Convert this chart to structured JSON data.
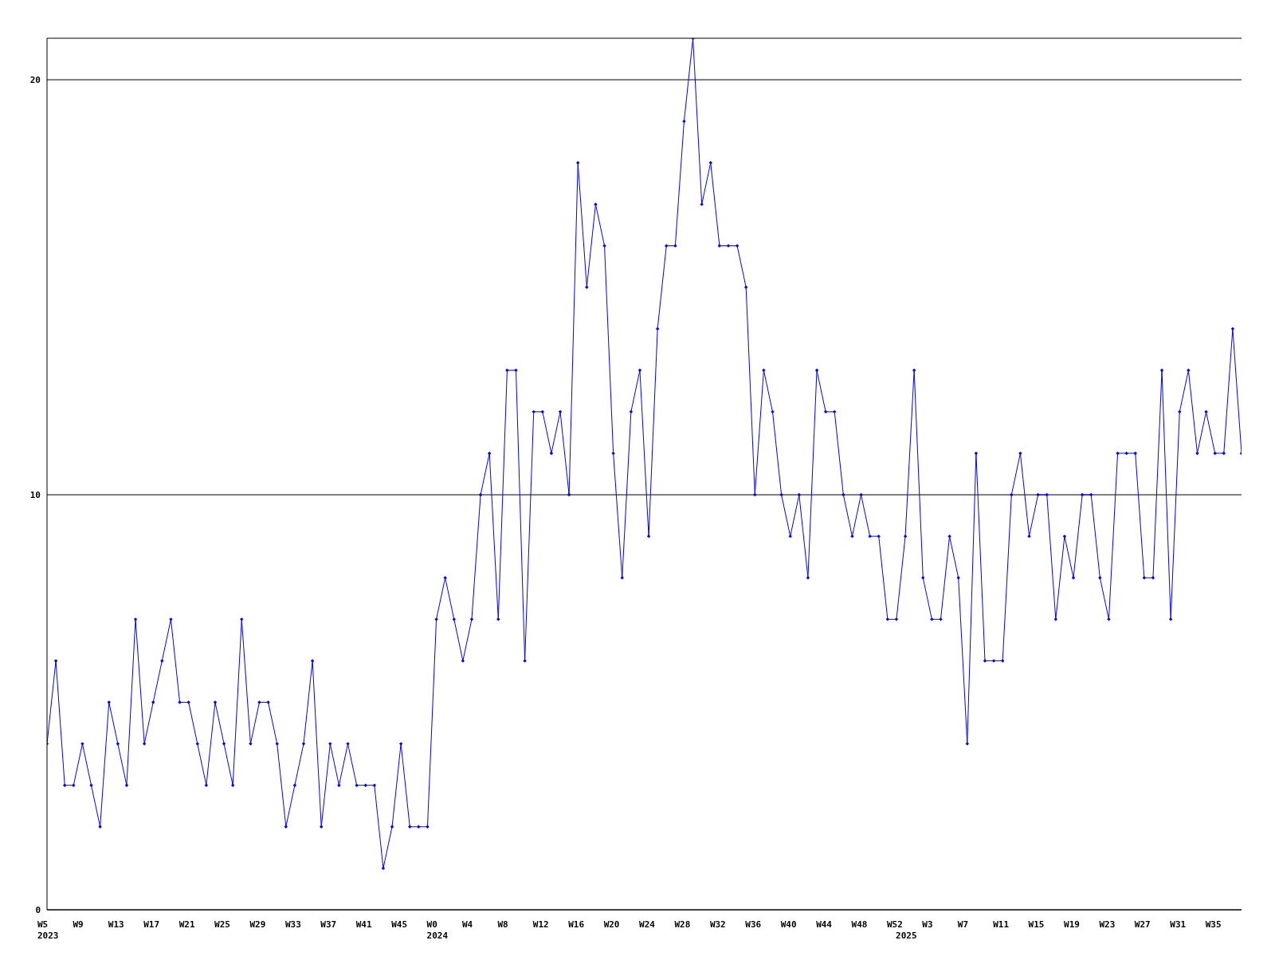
{
  "chart_data": {
    "type": "line",
    "categories": [
      "W5\n2023",
      null,
      null,
      null,
      "W9",
      null,
      null,
      null,
      "W13",
      null,
      null,
      null,
      "W17",
      null,
      null,
      null,
      "W21",
      null,
      null,
      null,
      "W25",
      null,
      null,
      null,
      "W29",
      null,
      null,
      null,
      "W33",
      null,
      null,
      null,
      "W37",
      null,
      null,
      null,
      "W41",
      null,
      null,
      null,
      "W45",
      null,
      null,
      null,
      "W0\n2024",
      null,
      null,
      null,
      "W4",
      null,
      null,
      null,
      "W8",
      null,
      null,
      null,
      "W12",
      null,
      null,
      null,
      "W16",
      null,
      null,
      null,
      "W20",
      null,
      null,
      null,
      "W24",
      null,
      null,
      null,
      "W28",
      null,
      null,
      null,
      "W32",
      null,
      null,
      null,
      "W36",
      null,
      null,
      null,
      "W40",
      null,
      null,
      null,
      "W44",
      null,
      null,
      null,
      "W48",
      null,
      null,
      null,
      "W52",
      "\n2025",
      null,
      null,
      "W3",
      null,
      null,
      null,
      "W7",
      null,
      null,
      null,
      "W11",
      null,
      null,
      null,
      "W15",
      null,
      null,
      null,
      "W19",
      null,
      null,
      null,
      "W23",
      null,
      null,
      null,
      "W27",
      null,
      null,
      null,
      "W31",
      null,
      null,
      null,
      "W35",
      null,
      null,
      null
    ],
    "series": [
      {
        "color": "#0000ff",
        "values": [
          4,
          6,
          3,
          3,
          4,
          3,
          2,
          5,
          4,
          3,
          7,
          4,
          5,
          6,
          7,
          5,
          5,
          4,
          3,
          5,
          4,
          3,
          7,
          4,
          5,
          5,
          4,
          2,
          3,
          4,
          6,
          2,
          4,
          3,
          4,
          3,
          3,
          3,
          1,
          2,
          4,
          2,
          2,
          2,
          7,
          8,
          7,
          6,
          7,
          10,
          11,
          7,
          13,
          13,
          6,
          12,
          12,
          11,
          12,
          10,
          18,
          15,
          17,
          16,
          11,
          8,
          12,
          13,
          9,
          14,
          16,
          16,
          19,
          21,
          17,
          18,
          16,
          16,
          16,
          15,
          10,
          13,
          12,
          10,
          9,
          10,
          8,
          13,
          12,
          12,
          10,
          9,
          10,
          9,
          9,
          7,
          7,
          9,
          13,
          8,
          7,
          7,
          9,
          8,
          4,
          11,
          6,
          6,
          6,
          10,
          11,
          9,
          10,
          10,
          7,
          9,
          8,
          10,
          10,
          8,
          7,
          11,
          11,
          11,
          8,
          8,
          13,
          7,
          12,
          13,
          11,
          12,
          11,
          11,
          14,
          11
        ]
      }
    ],
    "ylim": [
      0,
      21
    ],
    "yticks": [
      0,
      10,
      20
    ],
    "grid": "y",
    "marker": "diamond",
    "line_style": "solid"
  }
}
